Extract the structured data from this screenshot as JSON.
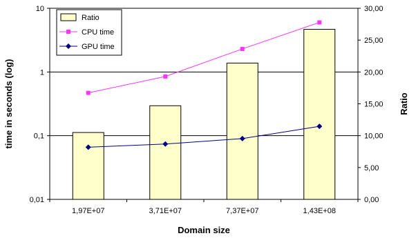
{
  "chart_data": {
    "type": "bar",
    "categories": [
      "1,97E+07",
      "3,71E+07",
      "7,37E+07",
      "1,43E+08"
    ],
    "series": [
      {
        "name": "Ratio",
        "type": "bar",
        "axis": "right",
        "values": [
          10.5,
          14.7,
          21.4,
          26.7
        ],
        "color": "#ffffcc",
        "stroke": "#000000"
      },
      {
        "name": "CPU time",
        "type": "line",
        "axis": "left",
        "values": [
          0.47,
          0.85,
          2.3,
          6.0
        ],
        "color": "#ff33ff",
        "marker": "square"
      },
      {
        "name": "GPU time",
        "type": "line",
        "axis": "left",
        "values": [
          0.066,
          0.074,
          0.09,
          0.14
        ],
        "color": "#000080",
        "marker": "diamond"
      }
    ],
    "xlabel": "Domain size",
    "ylabel": "time in seconds (log)",
    "y2label": "Ratio",
    "yscale": "log",
    "ylim": [
      0.01,
      10
    ],
    "y2lim": [
      0,
      30
    ],
    "yticks": [
      "0,01",
      "0,1",
      "1",
      "10"
    ],
    "y2ticks": [
      "0,00",
      "5,00",
      "10,00",
      "15,00",
      "20,00",
      "25,00",
      "30,00"
    ],
    "grid": "horizontal major gridlines (left axis)",
    "legend_position": "top-left"
  }
}
